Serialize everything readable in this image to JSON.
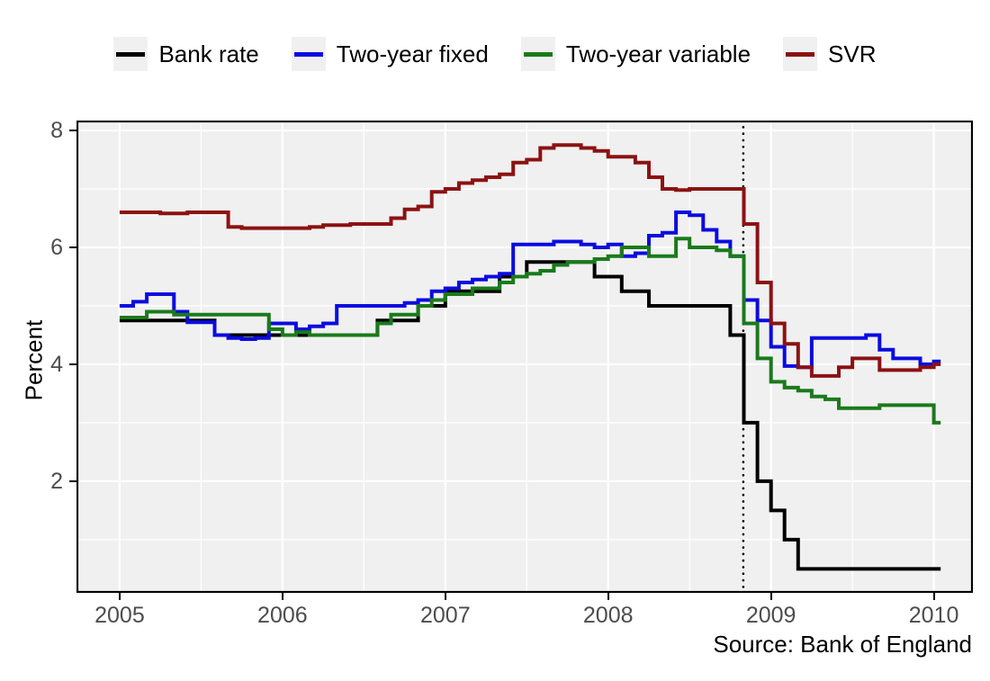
{
  "caption": "Source: Bank of England",
  "axes": {
    "y_title": "Percent",
    "x_tick_labels": [
      "2005",
      "2006",
      "2007",
      "2008",
      "2009",
      "2010"
    ],
    "y_tick_labels": [
      "8",
      "6",
      "4",
      "2"
    ]
  },
  "style_colors": {
    "panel_background": "#f0f0f0",
    "gridline": "#ffffff",
    "panel_border": "#000000",
    "tick_label": "#4d4d4d",
    "legend_key_background": "#f0f0f0"
  },
  "chart_data": {
    "type": "line",
    "subtype": "step",
    "title": "",
    "xlabel": "",
    "ylabel": "Percent",
    "caption": "Source: Bank of England",
    "legend_position": "top",
    "grid": "on",
    "x_start_year": 2005,
    "x_step_months": 1,
    "xlim": [
      2004.735,
      2010.24
    ],
    "ylim": [
      0.09,
      8.17
    ],
    "x_major_gridlines": [
      2005,
      2006,
      2007,
      2008,
      2009,
      2010
    ],
    "x_minor_gridlines": [
      2005.5,
      2006.5,
      2007.5,
      2008.5,
      2009.5
    ],
    "y_major_gridlines": [
      2,
      4,
      6,
      8
    ],
    "y_minor_gridlines": [
      1,
      3,
      5,
      7
    ],
    "x_ticks": [
      2005,
      2006,
      2007,
      2008,
      2009,
      2010
    ],
    "y_ticks": [
      8,
      6,
      4,
      2
    ],
    "vline": {
      "x": 2008.83,
      "style": "dotted",
      "color": "#000000",
      "label": ""
    },
    "months": [
      "2005-01",
      "2005-02",
      "2005-03",
      "2005-04",
      "2005-05",
      "2005-06",
      "2005-07",
      "2005-08",
      "2005-09",
      "2005-10",
      "2005-11",
      "2005-12",
      "2006-01",
      "2006-02",
      "2006-03",
      "2006-04",
      "2006-05",
      "2006-06",
      "2006-07",
      "2006-08",
      "2006-09",
      "2006-10",
      "2006-11",
      "2006-12",
      "2007-01",
      "2007-02",
      "2007-03",
      "2007-04",
      "2007-05",
      "2007-06",
      "2007-07",
      "2007-08",
      "2007-09",
      "2007-10",
      "2007-11",
      "2007-12",
      "2008-01",
      "2008-02",
      "2008-03",
      "2008-04",
      "2008-05",
      "2008-06",
      "2008-07",
      "2008-08",
      "2008-09",
      "2008-10",
      "2008-11",
      "2008-12",
      "2009-01",
      "2009-02",
      "2009-03",
      "2009-04",
      "2009-05",
      "2009-06",
      "2009-07",
      "2009-08",
      "2009-09",
      "2009-10",
      "2009-11",
      "2009-12",
      "2010-01"
    ],
    "series": [
      {
        "name": "Bank rate",
        "color": "#000000",
        "values": [
          4.75,
          4.75,
          4.75,
          4.75,
          4.75,
          4.75,
          4.75,
          4.5,
          4.5,
          4.5,
          4.5,
          4.5,
          4.5,
          4.5,
          4.5,
          4.5,
          4.5,
          4.5,
          4.5,
          4.75,
          4.75,
          4.75,
          5.0,
          5.0,
          5.25,
          5.25,
          5.25,
          5.25,
          5.5,
          5.5,
          5.75,
          5.75,
          5.75,
          5.75,
          5.75,
          5.5,
          5.5,
          5.25,
          5.25,
          5.0,
          5.0,
          5.0,
          5.0,
          5.0,
          5.0,
          4.5,
          3.0,
          2.0,
          1.5,
          1.0,
          0.5,
          0.5,
          0.5,
          0.5,
          0.5,
          0.5,
          0.5,
          0.5,
          0.5,
          0.5,
          0.5
        ]
      },
      {
        "name": "Two-year fixed",
        "color": "#0b0bdf",
        "values": [
          5.0,
          5.07,
          5.2,
          5.2,
          4.9,
          4.72,
          4.72,
          4.5,
          4.45,
          4.43,
          4.45,
          4.7,
          4.7,
          4.6,
          4.65,
          4.7,
          5.0,
          5.0,
          5.0,
          5.0,
          5.0,
          5.05,
          5.1,
          5.25,
          5.3,
          5.4,
          5.45,
          5.5,
          5.55,
          6.05,
          6.05,
          6.05,
          6.1,
          6.1,
          6.05,
          6.0,
          6.05,
          5.85,
          5.9,
          6.2,
          6.25,
          6.6,
          6.55,
          6.3,
          6.1,
          5.85,
          5.1,
          4.75,
          4.3,
          3.97,
          3.95,
          4.45,
          4.45,
          4.45,
          4.45,
          4.5,
          4.25,
          4.1,
          4.1,
          4.0,
          4.05
        ]
      },
      {
        "name": "Two-year variable",
        "color": "#1a7a1a",
        "values": [
          4.8,
          4.8,
          4.9,
          4.9,
          4.85,
          4.85,
          4.85,
          4.85,
          4.85,
          4.85,
          4.85,
          4.6,
          4.5,
          4.55,
          4.5,
          4.5,
          4.5,
          4.5,
          4.5,
          4.7,
          4.85,
          4.85,
          5.0,
          5.1,
          5.2,
          5.2,
          5.3,
          5.3,
          5.4,
          5.5,
          5.55,
          5.6,
          5.7,
          5.75,
          5.75,
          5.8,
          5.85,
          6.0,
          6.0,
          5.85,
          5.85,
          6.15,
          6.0,
          6.0,
          5.95,
          5.85,
          4.7,
          4.1,
          3.7,
          3.6,
          3.55,
          3.45,
          3.4,
          3.25,
          3.25,
          3.25,
          3.3,
          3.3,
          3.3,
          3.3,
          3.0
        ]
      },
      {
        "name": "SVR",
        "color": "#8b1212",
        "values": [
          6.6,
          6.6,
          6.6,
          6.58,
          6.58,
          6.6,
          6.6,
          6.6,
          6.35,
          6.33,
          6.33,
          6.33,
          6.33,
          6.33,
          6.35,
          6.38,
          6.38,
          6.4,
          6.4,
          6.4,
          6.5,
          6.65,
          6.7,
          6.95,
          7.0,
          7.1,
          7.15,
          7.2,
          7.25,
          7.45,
          7.5,
          7.7,
          7.75,
          7.75,
          7.7,
          7.65,
          7.55,
          7.55,
          7.45,
          7.2,
          7.0,
          6.98,
          7.0,
          7.0,
          7.0,
          7.0,
          6.4,
          5.4,
          4.7,
          4.35,
          3.95,
          3.8,
          3.8,
          3.95,
          4.1,
          4.1,
          3.9,
          3.9,
          3.9,
          3.95,
          4.0
        ]
      }
    ]
  }
}
